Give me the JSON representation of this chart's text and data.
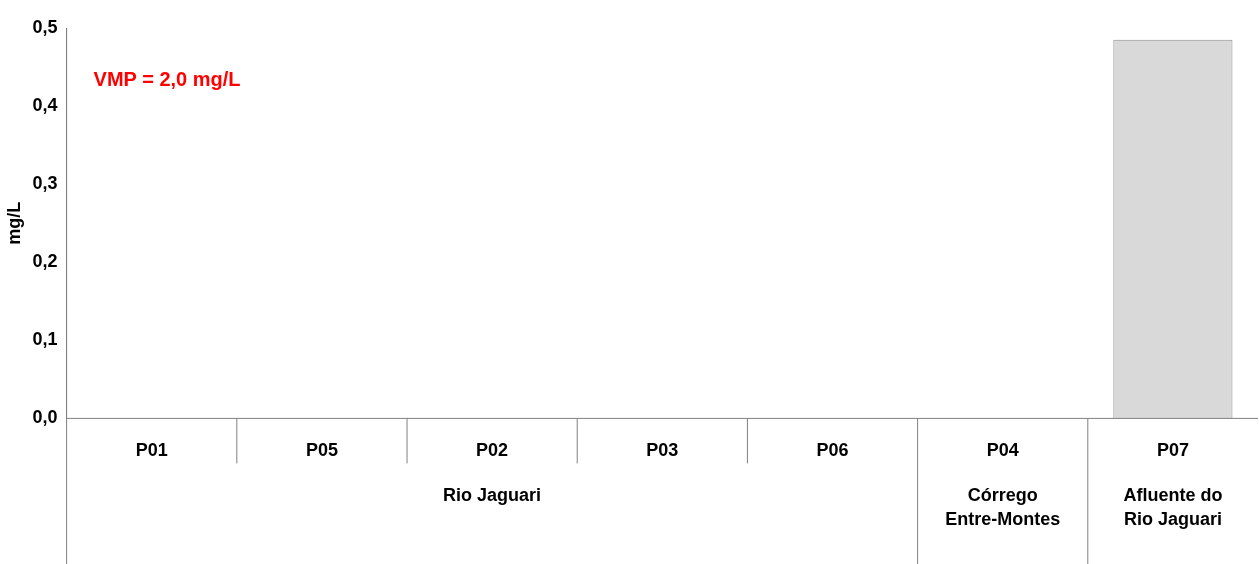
{
  "chart_data": {
    "type": "bar",
    "ylabel": "mg/L",
    "categories": [
      "P01",
      "P05",
      "P02",
      "P03",
      "P06",
      "P04",
      "P07"
    ],
    "values": [
      0,
      0,
      0,
      0,
      0,
      0,
      0.485
    ],
    "color": "#d9d9d9",
    "ylim": [
      0,
      0.5
    ],
    "yticks": [
      {
        "value": 0,
        "label": "0,0"
      },
      {
        "value": 0.1,
        "label": "0,1"
      },
      {
        "value": 0.2,
        "label": "0,2"
      },
      {
        "value": 0.3,
        "label": "0,3"
      },
      {
        "value": 0.4,
        "label": "0,4"
      },
      {
        "value": 0.5,
        "label": "0,5"
      }
    ],
    "grid": false,
    "legend": false,
    "annotations": [
      "VMP = 2,0 mg/L",
      "Rio Jaguari",
      "Córrego Entre-Montes",
      "Afluente do Rio Jaguari"
    ]
  }
}
